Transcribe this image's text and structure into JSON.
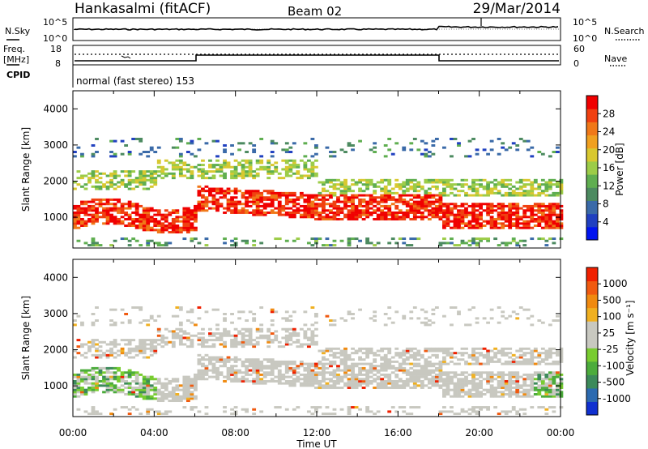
{
  "header": {
    "station": "Hankasalmi (fitACF)",
    "beam": "Beam 02",
    "date": "29/Mar/2014"
  },
  "top_panels": {
    "nsky": {
      "label": "N.Sky",
      "right_label": "N.Search",
      "ticks_left": [
        "10^5",
        "10^0"
      ],
      "ticks_right": [
        "10^5",
        "10^0"
      ]
    },
    "freq": {
      "label_line1": "Freq.",
      "label_line2": "[MHz]",
      "ticks_left": [
        "18",
        "8"
      ],
      "ticks_right": [
        "60",
        "0"
      ],
      "right_label": "Nave"
    },
    "cpid": {
      "label": "CPID",
      "text": "normal (fast stereo) 153"
    }
  },
  "chart_data": [
    {
      "type": "heatmap",
      "title": "Power",
      "ylabel": "Slant Range [km]",
      "xlabel": "",
      "ylim": [
        150,
        4500
      ],
      "xlim_hours": [
        0,
        24
      ],
      "y_ticks": [
        "1000",
        "2000",
        "3000",
        "4000"
      ],
      "colorbar": {
        "label": "Power [dB]",
        "ticks": [
          "4",
          "8",
          "12",
          "16",
          "20",
          "24",
          "28"
        ],
        "colors": [
          "#0014f0",
          "#2040c0",
          "#3a6aa8",
          "#4c8a60",
          "#5fae50",
          "#9ccc48",
          "#d8c830",
          "#f0a020",
          "#f07818",
          "#f04010",
          "#f00000"
        ]
      }
    },
    {
      "type": "heatmap",
      "title": "Velocity",
      "ylabel": "Slant Range [km]",
      "xlabel": "Time UT",
      "ylim": [
        150,
        4500
      ],
      "xlim_hours": [
        0,
        24
      ],
      "y_ticks": [
        "1000",
        "2000",
        "3000",
        "4000"
      ],
      "x_ticks": [
        "00:00",
        "04:00",
        "08:00",
        "12:00",
        "16:00",
        "20:00",
        "00:00"
      ],
      "colorbar": {
        "label": "Velocity [m s⁻¹]",
        "ticks": [
          "1000",
          "500",
          "100",
          "25",
          "-25",
          "-100",
          "-500",
          "-1000"
        ],
        "colors": [
          "#1030d0",
          "#2c6ab0",
          "#3c8a5a",
          "#4cac3c",
          "#78cc30",
          "#c8c8c0",
          "#c8c8c0",
          "#f0b020",
          "#f08a10",
          "#f05a10",
          "#f02000"
        ]
      }
    }
  ]
}
